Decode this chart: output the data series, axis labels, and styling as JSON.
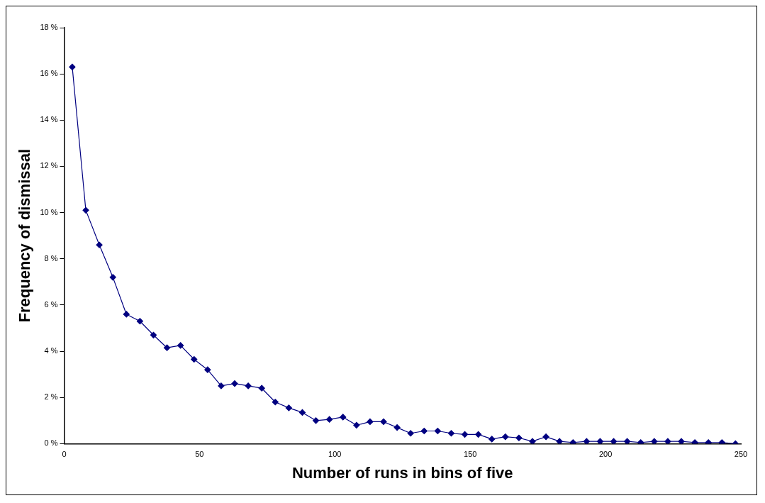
{
  "chart_data": {
    "type": "line",
    "xlabel": "Number of runs in bins of five",
    "ylabel": "Frequency of dismissal",
    "x": [
      3,
      8,
      13,
      18,
      23,
      28,
      33,
      38,
      43,
      48,
      53,
      58,
      63,
      68,
      73,
      78,
      83,
      88,
      93,
      98,
      103,
      108,
      113,
      118,
      123,
      128,
      133,
      138,
      143,
      148,
      153,
      158,
      163,
      168,
      173,
      178,
      183,
      188,
      193,
      198,
      203,
      208,
      213,
      218,
      223,
      228,
      233,
      238,
      243,
      248
    ],
    "series": [
      {
        "color": "#000080",
        "values": [
          16.3,
          10.1,
          8.6,
          7.2,
          5.6,
          5.3,
          4.7,
          4.15,
          4.25,
          3.65,
          3.2,
          2.5,
          2.6,
          2.5,
          2.4,
          1.8,
          1.55,
          1.35,
          1.0,
          1.05,
          1.15,
          0.8,
          0.95,
          0.95,
          0.7,
          0.45,
          0.55,
          0.55,
          0.45,
          0.4,
          0.4,
          0.2,
          0.3,
          0.25,
          0.1,
          0.3,
          0.1,
          0.05,
          0.1,
          0.1,
          0.1,
          0.1,
          0.05,
          0.1,
          0.1,
          0.1,
          0.05,
          0.05,
          0.05,
          0
        ]
      }
    ],
    "xlim": [
      0,
      250
    ],
    "xticks": [
      0,
      50,
      100,
      150,
      200,
      250
    ],
    "ylim": [
      0,
      18
    ],
    "yticks": [
      {
        "value": 0,
        "label": "0 %"
      },
      {
        "value": 2,
        "label": "2 %"
      },
      {
        "value": 4,
        "label": "4 %"
      },
      {
        "value": 6,
        "label": "6 %"
      },
      {
        "value": 8,
        "label": "8 %"
      },
      {
        "value": 10,
        "label": "10 %"
      },
      {
        "value": 12,
        "label": "12 %"
      },
      {
        "value": 14,
        "label": "14 %"
      },
      {
        "value": 16,
        "label": "16 %"
      },
      {
        "value": 18,
        "label": "18 %"
      }
    ],
    "grid": false,
    "legend": false,
    "marker": "diamond",
    "line_style": "solid"
  }
}
